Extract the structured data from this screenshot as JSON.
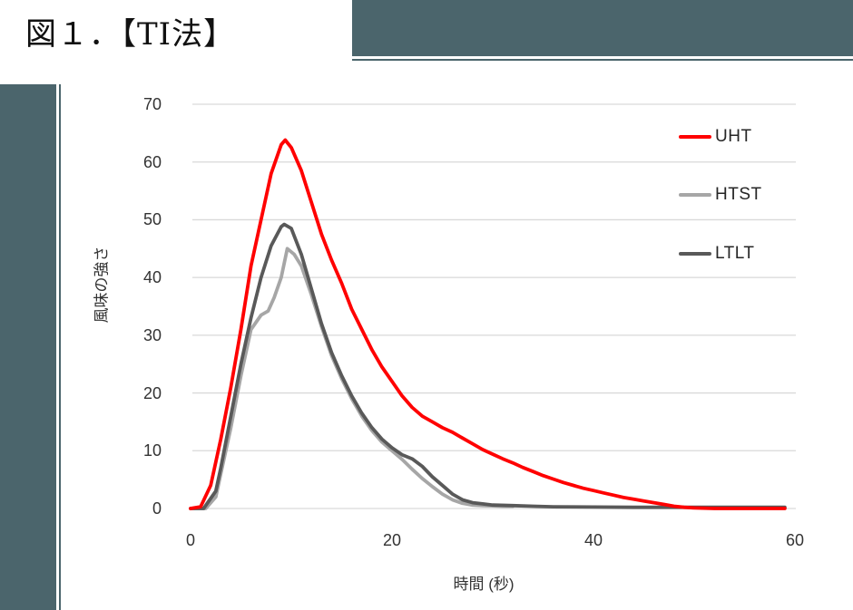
{
  "page": {
    "title": "図１．【TI法】"
  },
  "decor": {
    "accent_color": "#4b656c"
  },
  "chart_data": {
    "type": "line",
    "title": "",
    "xlabel": "時間 (秒)",
    "ylabel": "風味の強さ",
    "xlim": [
      0,
      60
    ],
    "ylim": [
      0,
      70
    ],
    "xticks": [
      0,
      20,
      40,
      60
    ],
    "yticks": [
      0,
      10,
      20,
      30,
      40,
      50,
      60,
      70
    ],
    "grid": true,
    "gridline_color": "#d9d9d9",
    "legend_position": "right",
    "series": [
      {
        "name": "UHT",
        "color": "#ff0000",
        "z": 3,
        "points": [
          [
            0,
            0
          ],
          [
            1,
            0.3
          ],
          [
            2,
            4
          ],
          [
            3,
            12
          ],
          [
            4,
            21
          ],
          [
            5,
            31
          ],
          [
            6,
            42
          ],
          [
            7,
            50
          ],
          [
            8,
            58
          ],
          [
            9,
            63
          ],
          [
            9.4,
            63.8
          ],
          [
            10,
            62.5
          ],
          [
            11,
            58.5
          ],
          [
            12,
            53
          ],
          [
            13,
            47.5
          ],
          [
            14,
            43
          ],
          [
            15,
            39
          ],
          [
            16,
            34.5
          ],
          [
            17,
            31
          ],
          [
            18,
            27.5
          ],
          [
            19,
            24.5
          ],
          [
            20,
            22
          ],
          [
            21,
            19.5
          ],
          [
            22,
            17.5
          ],
          [
            23,
            16
          ],
          [
            24,
            15
          ],
          [
            25,
            14
          ],
          [
            26,
            13.2
          ],
          [
            27,
            12.2
          ],
          [
            28,
            11.2
          ],
          [
            29,
            10.2
          ],
          [
            30,
            9.4
          ],
          [
            31,
            8.6
          ],
          [
            32,
            7.9
          ],
          [
            33,
            7.1
          ],
          [
            34,
            6.4
          ],
          [
            35,
            5.7
          ],
          [
            36,
            5.1
          ],
          [
            37,
            4.5
          ],
          [
            38,
            4
          ],
          [
            39,
            3.5
          ],
          [
            40,
            3.1
          ],
          [
            41,
            2.7
          ],
          [
            42,
            2.3
          ],
          [
            43,
            1.9
          ],
          [
            44,
            1.6
          ],
          [
            45,
            1.3
          ],
          [
            46,
            1
          ],
          [
            47,
            0.7
          ],
          [
            48,
            0.4
          ],
          [
            49,
            0.2
          ],
          [
            50,
            0.1
          ],
          [
            52,
            0
          ],
          [
            55,
            0
          ],
          [
            59,
            0
          ]
        ]
      },
      {
        "name": "HTST",
        "color": "#a6a6a6",
        "z": 1,
        "points": [
          [
            0,
            0
          ],
          [
            1.5,
            0
          ],
          [
            2.5,
            2
          ],
          [
            3,
            6
          ],
          [
            4,
            14
          ],
          [
            5,
            23
          ],
          [
            6,
            31
          ],
          [
            7,
            33.5
          ],
          [
            7.7,
            34.2
          ],
          [
            8.3,
            36.5
          ],
          [
            9,
            40
          ],
          [
            9.6,
            45
          ],
          [
            10.3,
            44
          ],
          [
            11,
            42
          ],
          [
            12,
            37
          ],
          [
            13,
            31.5
          ],
          [
            14,
            26.5
          ],
          [
            15,
            22.5
          ],
          [
            16,
            19
          ],
          [
            17,
            16
          ],
          [
            18,
            13.5
          ],
          [
            19,
            11.5
          ],
          [
            20,
            10
          ],
          [
            21,
            8.5
          ],
          [
            22,
            6.8
          ],
          [
            23,
            5.2
          ],
          [
            24,
            3.8
          ],
          [
            25,
            2.5
          ],
          [
            26,
            1.5
          ],
          [
            27,
            0.9
          ],
          [
            28,
            0.6
          ],
          [
            29,
            0.5
          ],
          [
            30,
            0.45
          ],
          [
            31,
            0.4
          ],
          [
            32,
            0.4
          ]
        ]
      },
      {
        "name": "LTLT",
        "color": "#595959",
        "z": 2,
        "points": [
          [
            0,
            0
          ],
          [
            1.3,
            0
          ],
          [
            2.5,
            3
          ],
          [
            3,
            7
          ],
          [
            4,
            16
          ],
          [
            5,
            25
          ],
          [
            6,
            33
          ],
          [
            7,
            40
          ],
          [
            8,
            45.5
          ],
          [
            9,
            48.8
          ],
          [
            9.3,
            49.2
          ],
          [
            10,
            48.5
          ],
          [
            11,
            44
          ],
          [
            12,
            38
          ],
          [
            13,
            32
          ],
          [
            14,
            27
          ],
          [
            15,
            23
          ],
          [
            16,
            19.5
          ],
          [
            17,
            16.5
          ],
          [
            18,
            14
          ],
          [
            19,
            12
          ],
          [
            20,
            10.5
          ],
          [
            21,
            9.3
          ],
          [
            22,
            8.6
          ],
          [
            23,
            7.3
          ],
          [
            24,
            5.5
          ],
          [
            25,
            4
          ],
          [
            26,
            2.5
          ],
          [
            27,
            1.5
          ],
          [
            28,
            1
          ],
          [
            29,
            0.8
          ],
          [
            30,
            0.6
          ],
          [
            32,
            0.5
          ],
          [
            34,
            0.4
          ],
          [
            36,
            0.3
          ],
          [
            40,
            0.25
          ],
          [
            44,
            0.2
          ],
          [
            48,
            0.2
          ],
          [
            52,
            0.2
          ],
          [
            56,
            0.2
          ],
          [
            59,
            0.2
          ]
        ]
      }
    ]
  }
}
